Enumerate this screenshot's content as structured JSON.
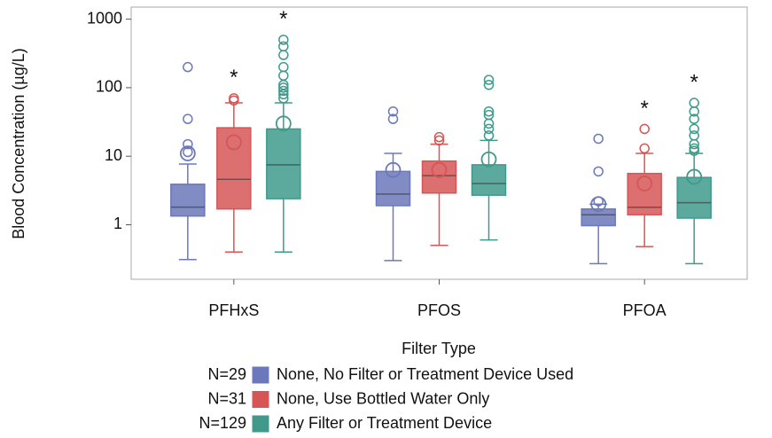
{
  "chart_data": {
    "type": "box",
    "ylabel": "Blood Concentration (µg/L)",
    "categories": [
      "PFHxS",
      "PFOS",
      "PFOA"
    ],
    "log_scale": true,
    "ylim": [
      0.16,
      1500
    ],
    "yticks": [
      1,
      10,
      100,
      1000
    ],
    "legend_title": "Filter Type",
    "significance_marker": "*",
    "series": [
      {
        "name": "None, No Filter or Treatment Device Used",
        "n_label": "N=29",
        "color": "#6b78bb",
        "boxes": [
          {
            "min": 0.31,
            "q1": 1.34,
            "median": 1.81,
            "q3": 3.9,
            "max": 7.7,
            "mean": 11,
            "outliers": [
              11.5,
              15,
              35,
              200
            ],
            "significant": false
          },
          {
            "min": 0.3,
            "q1": 1.9,
            "median": 2.8,
            "q3": 6,
            "max": 11,
            "mean": 6.3,
            "outliers": [
              35,
              45
            ],
            "significant": false
          },
          {
            "min": 0.27,
            "q1": 0.97,
            "median": 1.4,
            "q3": 1.7,
            "max": 2.0,
            "mean": 2.0,
            "outliers": [
              2.2,
              6,
              18
            ],
            "significant": false
          }
        ]
      },
      {
        "name": "None, Use Bottled Water Only",
        "n_label": "N=31",
        "color": "#d65656",
        "boxes": [
          {
            "min": 0.4,
            "q1": 1.7,
            "median": 4.6,
            "q3": 26,
            "max": 60,
            "mean": 16,
            "outliers": [
              65,
              70
            ],
            "significant": true
          },
          {
            "min": 0.5,
            "q1": 2.9,
            "median": 5.2,
            "q3": 8.5,
            "max": 15,
            "mean": 6.3,
            "outliers": [
              17,
              19
            ],
            "significant": false
          },
          {
            "min": 0.48,
            "q1": 1.4,
            "median": 1.8,
            "q3": 5.6,
            "max": 11,
            "mean": 4,
            "outliers": [
              13,
              25
            ],
            "significant": true
          }
        ]
      },
      {
        "name": "Any Filter or Treatment Device",
        "n_label": "N=129",
        "color": "#3f9a8c",
        "boxes": [
          {
            "min": 0.4,
            "q1": 2.4,
            "median": 7.5,
            "q3": 25,
            "max": 60,
            "mean": 30,
            "outliers": [
              70,
              80,
              90,
              100,
              110,
              150,
              200,
              300,
              400,
              500
            ],
            "significant": true
          },
          {
            "min": 0.6,
            "q1": 2.7,
            "median": 4,
            "q3": 7.5,
            "max": 17,
            "mean": 9,
            "outliers": [
              20,
              25,
              30,
              40,
              45,
              110,
              130
            ],
            "significant": false
          },
          {
            "min": 0.27,
            "q1": 1.25,
            "median": 2.1,
            "q3": 4.9,
            "max": 11,
            "mean": 5,
            "outliers": [
              12,
              13,
              15,
              20,
              25,
              35,
              45,
              60
            ],
            "significant": true
          }
        ]
      }
    ]
  }
}
